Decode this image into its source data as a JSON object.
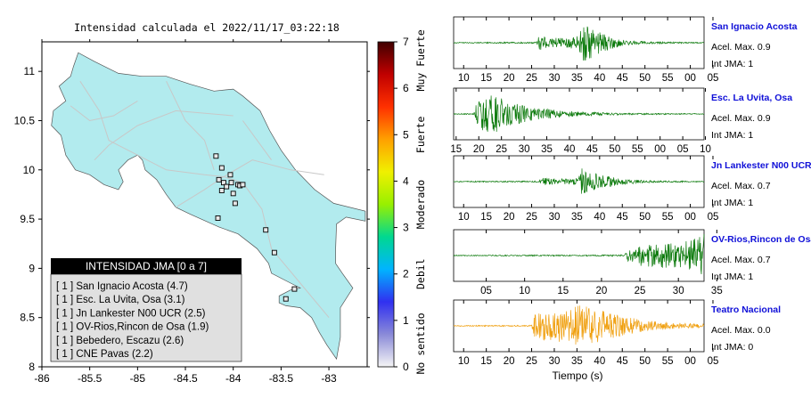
{
  "map": {
    "title": "Intensidad calculada el 2022/11/17_03:22:18",
    "x_ticks": [
      "-86",
      "-85.5",
      "-85",
      "-84.5",
      "-84",
      "-83.5",
      "-83"
    ],
    "y_ticks": [
      "11",
      "10.5",
      "10",
      "9.5",
      "9",
      "8.5",
      "8"
    ],
    "xlim": [
      -86,
      -82.6
    ],
    "ylim": [
      8,
      11.3
    ],
    "colors": {
      "land": "#b2ebee",
      "sea": "#ffffff",
      "roads": "#c8c8c8"
    },
    "legend": {
      "title": "INTENSIDAD JMA [0 a 7]",
      "entries": [
        "[ 1 ]  San Ignacio Acosta (4.7)",
        "[ 1 ]  Esc. La Uvita, Osa (3.1)",
        "[ 1 ]  Jn Lankester N00 UCR (2.5)",
        "[ 1 ]  OV-Rios,Rincon de Osa (1.9)",
        "[ 1 ]  Bebedero, Escazu (2.6)",
        "[ 1 ]  CNE Pavas (2.2)"
      ]
    },
    "stations": [
      {
        "lon": -84.18,
        "lat": 10.14
      },
      {
        "lon": -84.12,
        "lat": 10.02
      },
      {
        "lon": -84.03,
        "lat": 9.95
      },
      {
        "lon": -84.15,
        "lat": 9.9
      },
      {
        "lon": -84.1,
        "lat": 9.87
      },
      {
        "lon": -84.07,
        "lat": 9.83
      },
      {
        "lon": -84.02,
        "lat": 9.87
      },
      {
        "lon": -83.95,
        "lat": 9.85
      },
      {
        "lon": -83.93,
        "lat": 9.84
      },
      {
        "lon": -83.9,
        "lat": 9.85
      },
      {
        "lon": -84.12,
        "lat": 9.79
      },
      {
        "lon": -84.0,
        "lat": 9.76
      },
      {
        "lon": -83.98,
        "lat": 9.66
      },
      {
        "lon": -84.16,
        "lat": 9.51
      },
      {
        "lon": -83.66,
        "lat": 9.39
      },
      {
        "lon": -83.57,
        "lat": 9.16
      },
      {
        "lon": -83.36,
        "lat": 8.79
      },
      {
        "lon": -83.45,
        "lat": 8.69
      }
    ]
  },
  "colorbar": {
    "ticks": [
      "0",
      "1",
      "2",
      "3",
      "4",
      "5",
      "6",
      "7"
    ],
    "labels": [
      "No sentido",
      "Debil",
      "Moderado",
      "Fuerte",
      "Muy Fuerte"
    ],
    "gradient": [
      "#f5f5f5",
      "#8a8ad8",
      "#3030f0",
      "#00b4ff",
      "#00d890",
      "#98f000",
      "#f0f000",
      "#ffa000",
      "#ff3000",
      "#c00000",
      "#400000"
    ]
  },
  "seismograms": {
    "xlabel": "Tiempo (s)",
    "traces": [
      {
        "station": "San Ignacio Acosta",
        "acel": "Acel. Max. 0.9",
        "int": "Int JMA: 1",
        "color": "#0c7a0c",
        "ticks": [
          "10",
          "15",
          "20",
          "25",
          "30",
          "35",
          "40",
          "45",
          "50",
          "55",
          "00",
          "05"
        ],
        "first_tick_frac": 0.04,
        "tick_step_frac": 0.0905,
        "envelope": [
          [
            0.0,
            0.02
          ],
          [
            0.33,
            0.03
          ],
          [
            0.34,
            0.32
          ],
          [
            0.37,
            0.22
          ],
          [
            0.44,
            0.2
          ],
          [
            0.5,
            0.3
          ],
          [
            0.51,
            0.92
          ],
          [
            0.53,
            0.85
          ],
          [
            0.56,
            0.55
          ],
          [
            0.6,
            0.35
          ],
          [
            0.66,
            0.18
          ],
          [
            0.72,
            0.08
          ],
          [
            0.8,
            0.04
          ],
          [
            1.0,
            0.02
          ]
        ]
      },
      {
        "station": "Esc. La Uvita, Osa",
        "acel": "Acel. Max. 0.9",
        "int": "Int JMA: 1",
        "color": "#0c7a0c",
        "ticks": [
          "15",
          "20",
          "25",
          "30",
          "35",
          "40",
          "45",
          "50",
          "55",
          "00",
          "05",
          "10"
        ],
        "first_tick_frac": 0.01,
        "tick_step_frac": 0.0905,
        "envelope": [
          [
            0.0,
            0.02
          ],
          [
            0.08,
            0.03
          ],
          [
            0.09,
            0.5
          ],
          [
            0.12,
            0.75
          ],
          [
            0.16,
            0.8
          ],
          [
            0.2,
            0.6
          ],
          [
            0.26,
            0.4
          ],
          [
            0.33,
            0.25
          ],
          [
            0.42,
            0.15
          ],
          [
            0.52,
            0.08
          ],
          [
            0.62,
            0.05
          ],
          [
            0.75,
            0.03
          ],
          [
            1.0,
            0.02
          ]
        ]
      },
      {
        "station": "Jn Lankester N00 UCR",
        "acel": "Acel. Max. 0.7",
        "int": "Int JMA: 1",
        "color": "#0c7a0c",
        "ticks": [
          "10",
          "15",
          "20",
          "25",
          "30",
          "35",
          "40",
          "45",
          "50",
          "55",
          "00",
          "05"
        ],
        "first_tick_frac": 0.04,
        "tick_step_frac": 0.0905,
        "envelope": [
          [
            0.0,
            0.02
          ],
          [
            0.34,
            0.03
          ],
          [
            0.35,
            0.16
          ],
          [
            0.42,
            0.12
          ],
          [
            0.5,
            0.14
          ],
          [
            0.51,
            0.85
          ],
          [
            0.53,
            0.45
          ],
          [
            0.58,
            0.3
          ],
          [
            0.65,
            0.16
          ],
          [
            0.72,
            0.08
          ],
          [
            0.8,
            0.04
          ],
          [
            1.0,
            0.02
          ]
        ]
      },
      {
        "station": "OV-Rios,Rincon de Osa",
        "acel": "Acel. Max. 0.7",
        "int": "Int JMA: 1",
        "color": "#0c7a0c",
        "ticks": [
          "05",
          "10",
          "15",
          "20",
          "25",
          "30",
          "35"
        ],
        "first_tick_frac": 0.13,
        "tick_step_frac": 0.1535,
        "envelope": [
          [
            0.0,
            0.02
          ],
          [
            0.68,
            0.03
          ],
          [
            0.7,
            0.3
          ],
          [
            0.75,
            0.45
          ],
          [
            0.82,
            0.5
          ],
          [
            0.88,
            0.55
          ],
          [
            0.93,
            0.6
          ],
          [
            0.96,
            0.8
          ],
          [
            1.0,
            0.95
          ]
        ]
      },
      {
        "station": "Teatro Nacional",
        "acel": "Acel. Max. 0.0",
        "int": "Int JMA: 0",
        "color": "#f0a010",
        "ticks": [
          "10",
          "15",
          "20",
          "25",
          "30",
          "35",
          "40",
          "45",
          "50",
          "55",
          "00",
          "05"
        ],
        "first_tick_frac": 0.04,
        "tick_step_frac": 0.0905,
        "envelope": [
          [
            0.0,
            0.02
          ],
          [
            0.31,
            0.03
          ],
          [
            0.32,
            0.45
          ],
          [
            0.38,
            0.65
          ],
          [
            0.45,
            0.75
          ],
          [
            0.5,
            0.85
          ],
          [
            0.56,
            0.75
          ],
          [
            0.62,
            0.55
          ],
          [
            0.7,
            0.35
          ],
          [
            0.8,
            0.2
          ],
          [
            0.9,
            0.12
          ],
          [
            1.0,
            0.08
          ]
        ]
      }
    ]
  }
}
